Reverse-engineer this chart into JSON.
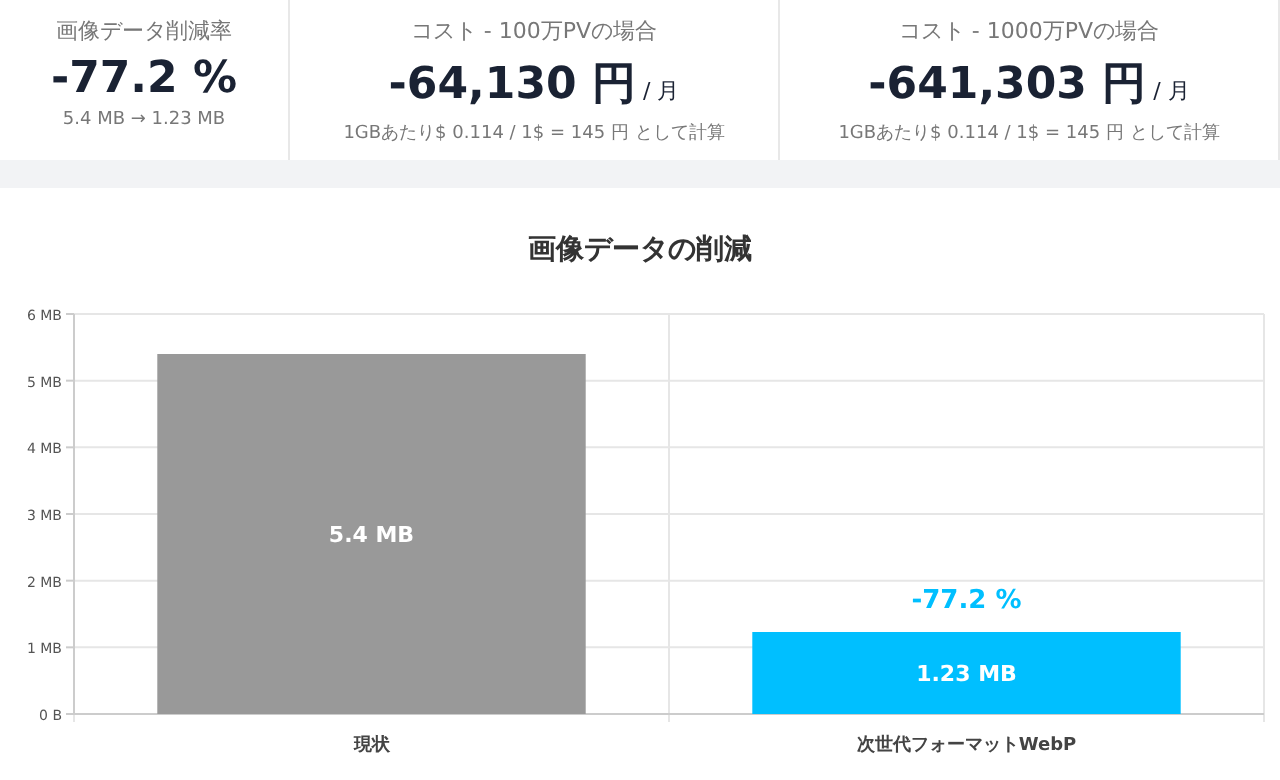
{
  "chart_data": [
    {
      "type": "other",
      "title": "画像データ削減率",
      "annotations": [
        "-77.2 %",
        "5.4 MB → 1.23 MB"
      ]
    },
    {
      "type": "other",
      "title": "コスト - 100万PVの場合",
      "annotations": [
        "-64,130 円",
        "/ 月",
        "1GBあたり$ 0.114 / 1$ = 145 円 として計算"
      ]
    },
    {
      "type": "other",
      "title": "コスト - 1000万PVの場合",
      "annotations": [
        "-641,303 円",
        "/ 月",
        "1GBあたり$ 0.114 / 1$ = 145 円 として計算"
      ]
    },
    {
      "type": "bar",
      "title": "画像データの削減",
      "categories": [
        "現状",
        "次世代フォーマットWebP"
      ],
      "values": [
        5.4,
        1.23
      ],
      "colors": [
        "#999999",
        "#00bfff"
      ],
      "value_labels": [
        "5.4 MB",
        "1.23 MB"
      ],
      "annotations": [
        {
          "text": "-77.2 %",
          "x": "次世代フォーマットWebP",
          "y": 1.23
        }
      ],
      "ylim": [
        0,
        6
      ],
      "yticks": [
        {
          "value": 0,
          "label": "0 B"
        },
        {
          "value": 1,
          "label": "1 MB"
        },
        {
          "value": 2,
          "label": "2 MB"
        },
        {
          "value": 3,
          "label": "3 MB"
        },
        {
          "value": 4,
          "label": "4 MB"
        },
        {
          "value": 5,
          "label": "5 MB"
        },
        {
          "value": 6,
          "label": "6 MB"
        }
      ],
      "grid": true
    }
  ]
}
